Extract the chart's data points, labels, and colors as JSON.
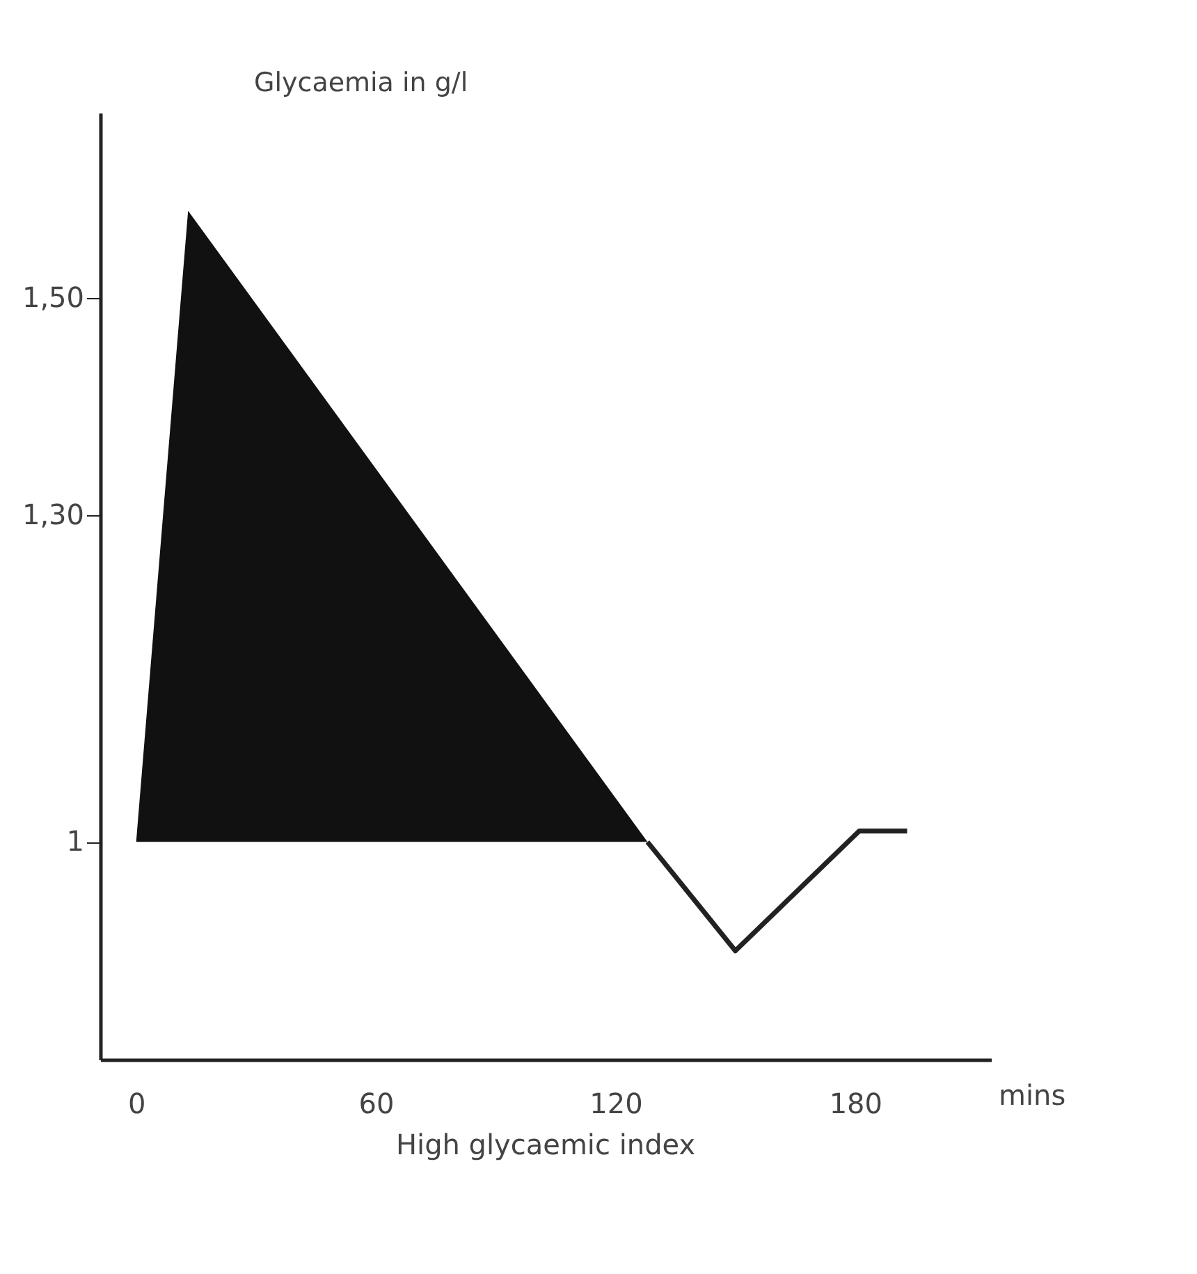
{
  "chart_data": {
    "type": "line",
    "ylabel": "Glycaemia in g/l",
    "xlabel": "mins",
    "annotations": [
      "High glycaemic index"
    ],
    "xlim": [
      -9,
      214
    ],
    "ylim": [
      0.8,
      1.67
    ],
    "xticks": [
      0,
      60,
      120,
      180
    ],
    "yticks": [
      {
        "value": 1,
        "label": "1"
      },
      {
        "value": 1.3,
        "label": "1,30"
      },
      {
        "value": 1.5,
        "label": "1,50"
      }
    ],
    "grid": false,
    "marker": "none",
    "line_style": "solid",
    "series": [
      {
        "type": "area",
        "color": "#111111",
        "x": [
          0,
          13,
          128
        ],
        "values": [
          1,
          1.58,
          1
        ]
      },
      {
        "color": "#222222",
        "x": [
          128,
          150,
          181,
          193
        ],
        "values": [
          1,
          0.9,
          1.01,
          1.01
        ]
      }
    ]
  }
}
